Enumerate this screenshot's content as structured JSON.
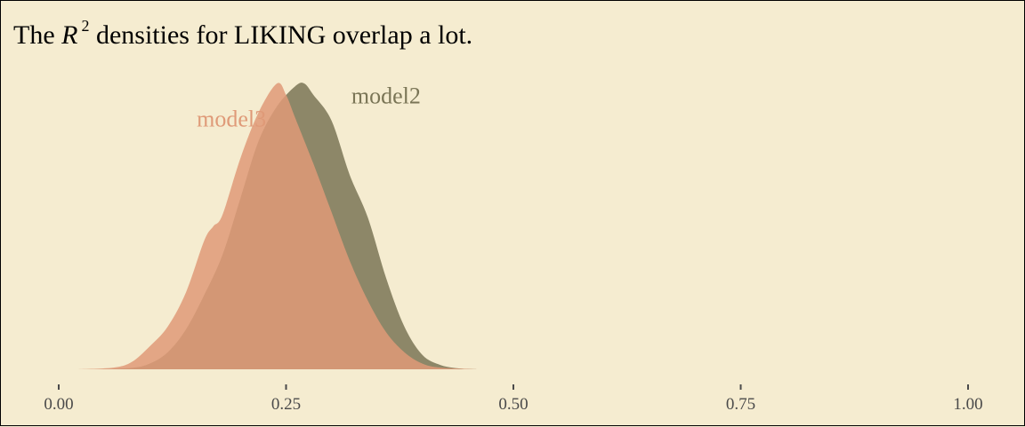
{
  "colors": {
    "background": "#f5ecd0",
    "axis": "#4a4a4a",
    "model2": "#7a7556",
    "model3": "#df9a78"
  },
  "chart_data": {
    "type": "area",
    "title": {
      "prefix": "The ",
      "symbol": "R",
      "superscript": "2",
      "suffix": " densities for LIKING overlap a lot."
    },
    "xlabel": "",
    "ylabel": "",
    "xlim": [
      0.0,
      1.0
    ],
    "xticks": [
      0.0,
      0.25,
      0.5,
      0.75,
      1.0
    ],
    "xtick_labels": [
      "0.00",
      "0.25",
      "0.50",
      "0.75",
      "1.00"
    ],
    "grid": false,
    "legend": "direct labels",
    "y_axis_visible": false,
    "series": [
      {
        "name": "model2",
        "x": [
          0.04,
          0.08,
          0.1,
          0.12,
          0.14,
          0.16,
          0.18,
          0.2,
          0.22,
          0.24,
          0.26,
          0.27,
          0.28,
          0.3,
          0.32,
          0.34,
          0.36,
          0.38,
          0.4,
          0.42,
          0.44,
          0.46
        ],
        "y": [
          0.0,
          0.005,
          0.02,
          0.06,
          0.14,
          0.26,
          0.4,
          0.6,
          0.8,
          0.92,
          0.99,
          1.0,
          0.96,
          0.87,
          0.68,
          0.53,
          0.32,
          0.15,
          0.05,
          0.015,
          0.003,
          0.0
        ]
      },
      {
        "name": "model3",
        "x": [
          0.02,
          0.06,
          0.08,
          0.1,
          0.12,
          0.14,
          0.16,
          0.17,
          0.18,
          0.2,
          0.22,
          0.24,
          0.25,
          0.26,
          0.28,
          0.3,
          0.32,
          0.34,
          0.36,
          0.38,
          0.4,
          0.42,
          0.46
        ],
        "y": [
          0.0,
          0.006,
          0.025,
          0.08,
          0.15,
          0.27,
          0.45,
          0.5,
          0.54,
          0.74,
          0.9,
          1.0,
          0.96,
          0.88,
          0.72,
          0.55,
          0.38,
          0.24,
          0.13,
          0.06,
          0.02,
          0.006,
          0.0
        ]
      }
    ],
    "annotations": [
      {
        "series": "model2",
        "text": "model2",
        "x": 0.36,
        "y": 0.93
      },
      {
        "series": "model3",
        "text": "model3",
        "x": 0.19,
        "y": 0.85
      }
    ]
  }
}
